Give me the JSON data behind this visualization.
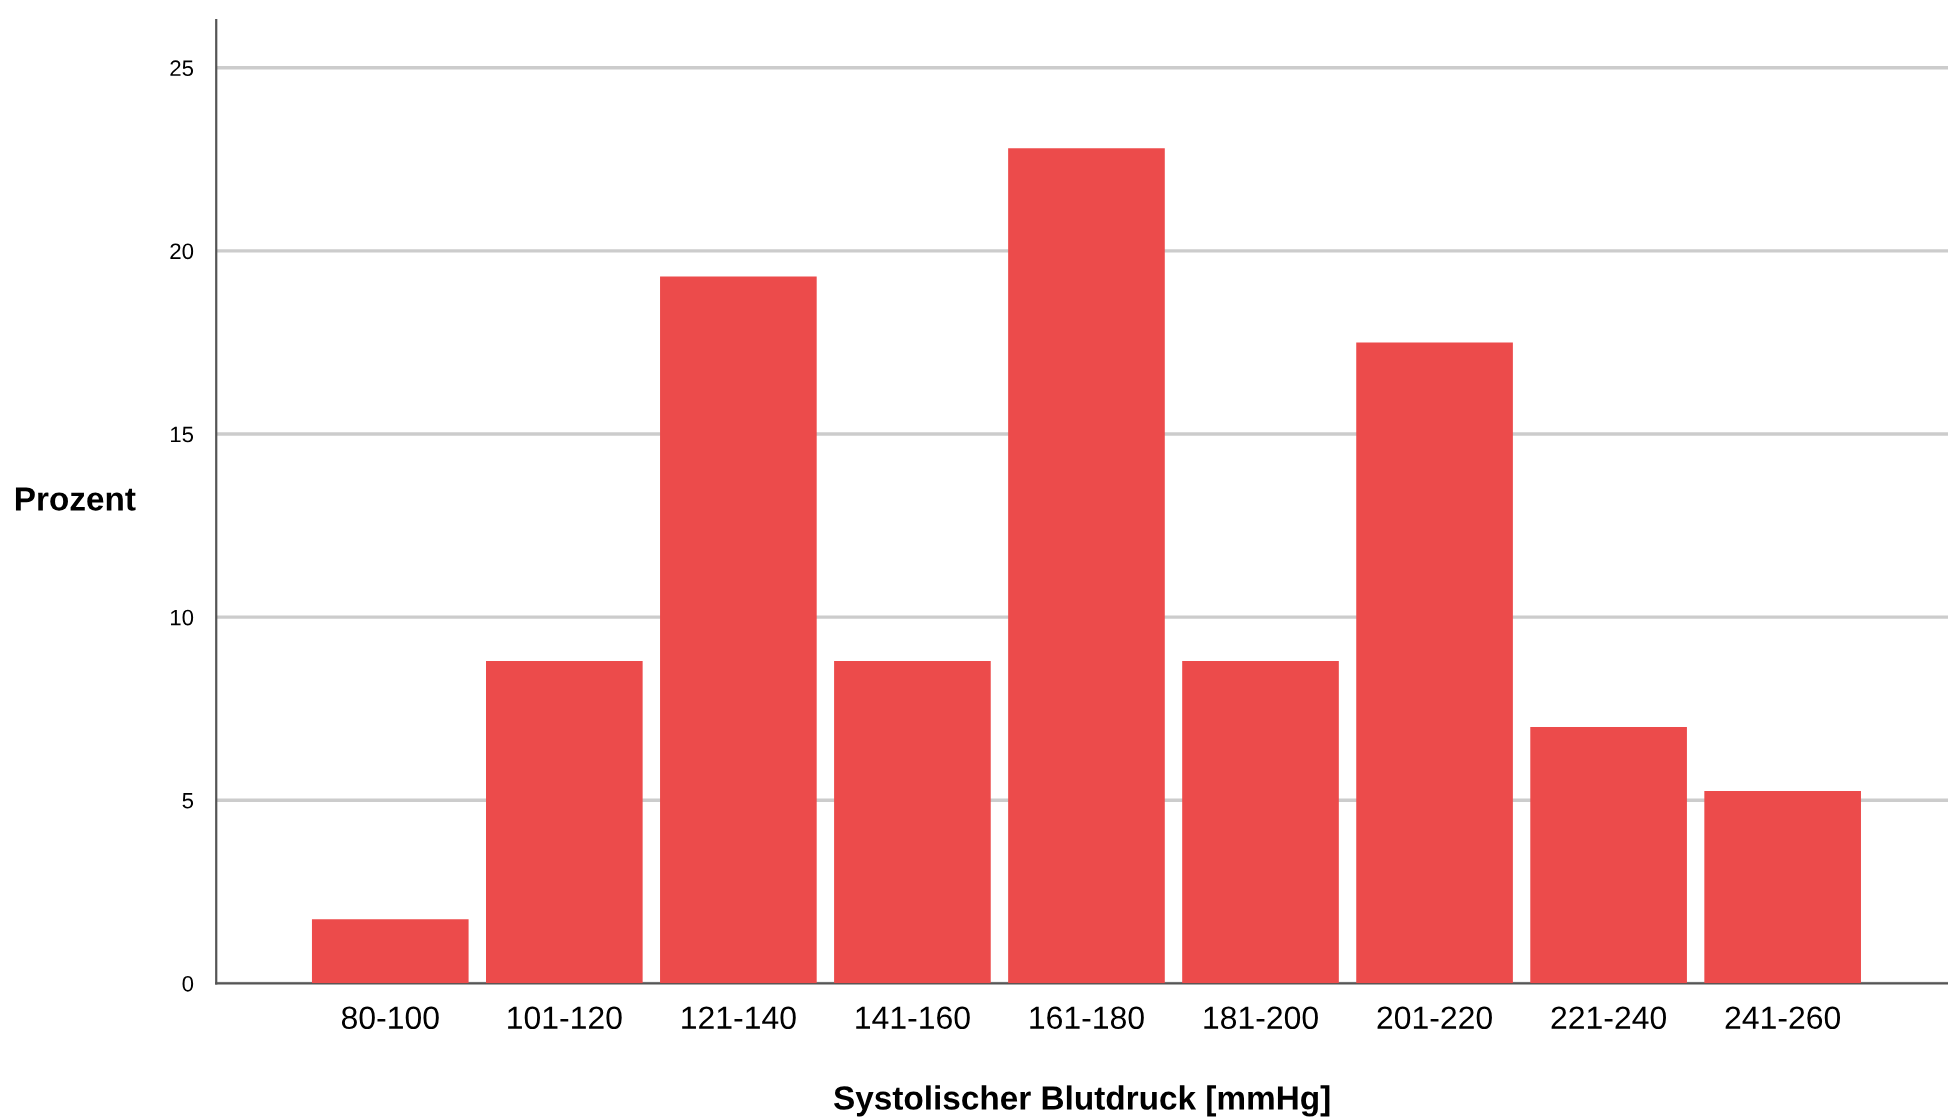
{
  "chart_data": {
    "type": "bar",
    "xlabel": "Systolischer Blutdruck [mmHg]",
    "ylabel": "Prozent",
    "categories": [
      "80-100",
      "101-120",
      "121-140",
      "141-160",
      "161-180",
      "181-200",
      "201-220",
      "221-240",
      "241-260"
    ],
    "values": [
      1.75,
      8.8,
      19.3,
      8.8,
      22.8,
      8.8,
      17.5,
      7.0,
      5.25
    ],
    "color": "#ec4b4b",
    "ylim": [
      0,
      26.3
    ],
    "yticks": [
      0,
      5,
      10,
      15,
      20,
      25
    ],
    "grid": "y"
  }
}
